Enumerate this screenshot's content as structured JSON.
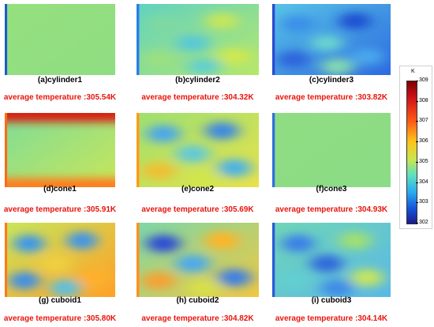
{
  "panels": [
    {
      "label": "(a)cylinder1",
      "avg": "average temperature :305.54K",
      "colors": [
        "#95e07e",
        "#8fdd82"
      ],
      "edge": "#1c5ad0",
      "blobs": []
    },
    {
      "label": "(b)cylinder2",
      "avg": "average temperature :304.32K",
      "colors": [
        "#5fd2c2",
        "#b6e86a"
      ],
      "edge": "#2a7ee8",
      "blobs": [
        "#7fd8a0",
        "#c8e65a",
        "#58c8d8",
        "#9be080",
        "#d0e850",
        "#62cfcf"
      ]
    },
    {
      "label": "(c)cylinder3",
      "avg": "average temperature :303.82K",
      "colors": [
        "#58c4e6",
        "#2c6ae0"
      ],
      "edge": "#2a4ad0",
      "blobs": [
        "#3b8ee8",
        "#1f4fd0",
        "#6ad4d0",
        "#2d64dc",
        "#4aa8ec",
        "#85dab0"
      ]
    },
    {
      "label": "(d)cone1",
      "avg": "average temperature :305.91K",
      "colors": [
        "#7edc98",
        "#c8e65a"
      ],
      "edge": "#ff6a14",
      "top": "#d81a10",
      "bottom": "#ff7a1a",
      "blobs": []
    },
    {
      "label": "(e)cone2",
      "avg": "average temperature :305.69K",
      "colors": [
        "#9de070",
        "#e8e24a"
      ],
      "edge": "#ff9a1a",
      "blobs": [
        "#4aa6ec",
        "#3a86e6",
        "#60c8dc",
        "#f0c030",
        "#4ab0ea",
        "#d0e64c"
      ]
    },
    {
      "label": "(f)cone3",
      "avg": "average temperature :304.93K",
      "colors": [
        "#8fdd82",
        "#8bdc86"
      ],
      "edge": "#3070e0",
      "blobs": []
    },
    {
      "label": "(g) cuboid1",
      "avg": "average temperature :305.80K",
      "colors": [
        "#c8e65a",
        "#ffa028"
      ],
      "edge": "#ff7a1a",
      "blobs": [
        "#3a96ec",
        "#3c94ea",
        "#f0d040",
        "#3c8ee8",
        "#ffb02a",
        "#5cc0e2"
      ]
    },
    {
      "label": "(h) cuboid2",
      "avg": "average temperature :304.82K",
      "colors": [
        "#7cd8a8",
        "#f0c840"
      ],
      "edge": "#ff9020",
      "blobs": [
        "#2a4ad6",
        "#ffb428",
        "#4aa8ee",
        "#f8a030",
        "#3a7ee6",
        "#d8e048"
      ]
    },
    {
      "label": "(i) cuboid3",
      "avg": "average temperature :304.14K",
      "colors": [
        "#70d6b6",
        "#5ab8e6"
      ],
      "edge": "#2a5ad8",
      "blobs": [
        "#3a7ee8",
        "#a0e070",
        "#2e66dc",
        "#62cfd0",
        "#c8e65a",
        "#3c8ae8"
      ]
    }
  ],
  "colorbar": {
    "unit": "K",
    "ticks": [
      "309",
      "308",
      "307",
      "306",
      "305",
      "304",
      "303",
      "302"
    ]
  }
}
